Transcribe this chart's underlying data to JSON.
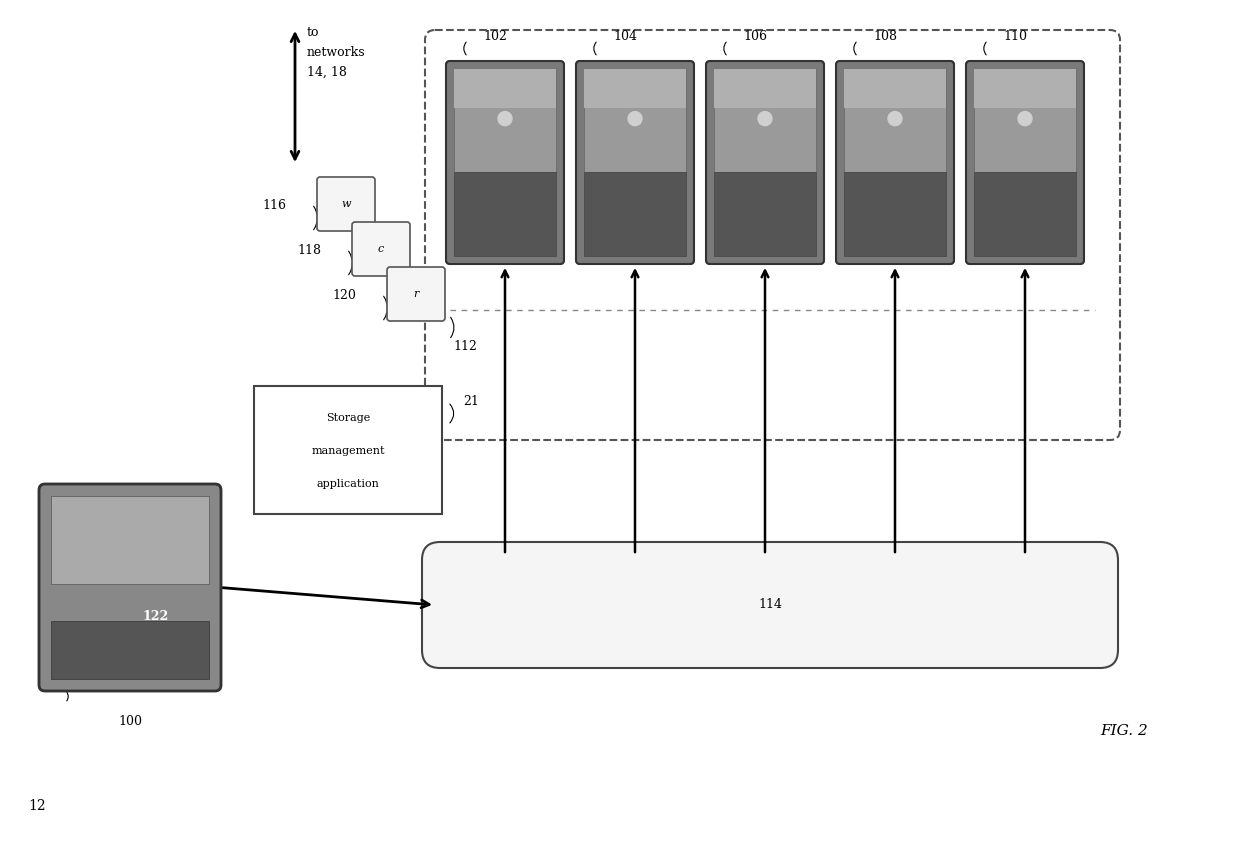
{
  "title": "FIG. 2",
  "fig_label": "12",
  "bg_color": "#ffffff",
  "disk_labels": [
    "102",
    "104",
    "106",
    "108",
    "110"
  ],
  "bus_label": "114",
  "dashed_line_label": "112",
  "storage_mgmt_label": "21",
  "storage_mgmt_text": [
    "Storage",
    "management",
    "application"
  ],
  "node_label": "100",
  "queue_labels": [
    "116",
    "118",
    "120"
  ],
  "queue_texts": [
    "w",
    "c",
    "r"
  ],
  "node_inner_label": "122",
  "network_text_1": "to",
  "network_text_2": "networks",
  "network_text_3": "14, 18"
}
